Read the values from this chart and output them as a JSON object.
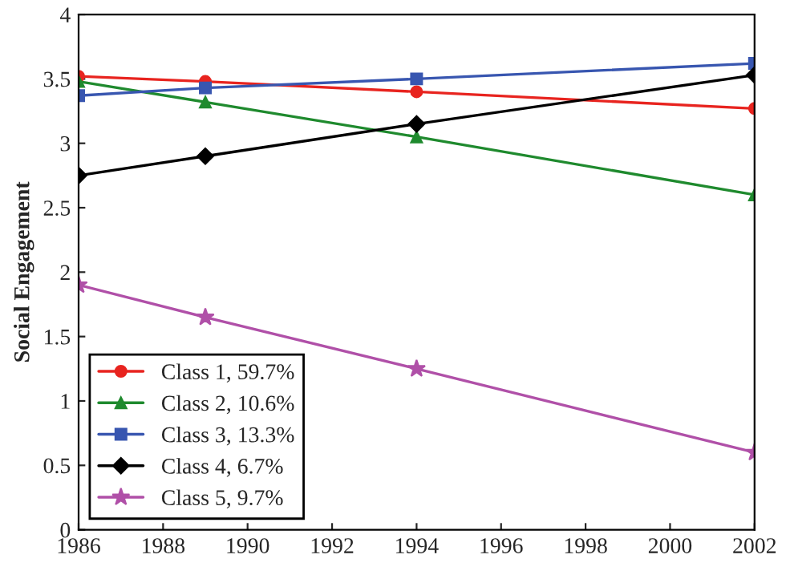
{
  "chart_data": {
    "type": "line",
    "ylabel": "Social Engagement",
    "x": [
      1986,
      1989,
      1994,
      2002
    ],
    "series": [
      {
        "name": "Class 1, 59.7%",
        "color": "#e8241f",
        "marker": "circle",
        "values": [
          3.52,
          3.48,
          3.4,
          3.27
        ]
      },
      {
        "name": "Class 2, 10.6%",
        "color": "#1f8a2e",
        "marker": "triangle",
        "values": [
          3.48,
          3.32,
          3.05,
          2.6
        ]
      },
      {
        "name": "Class 3, 13.3%",
        "color": "#3856b0",
        "marker": "square",
        "values": [
          3.37,
          3.43,
          3.5,
          3.62
        ]
      },
      {
        "name": "Class 4, 6.7%",
        "color": "#000000",
        "marker": "diamond",
        "values": [
          2.75,
          2.9,
          3.15,
          3.53
        ]
      },
      {
        "name": "Class 5, 9.7%",
        "color": "#b050a8",
        "marker": "star",
        "values": [
          1.9,
          1.65,
          1.25,
          0.6
        ]
      }
    ],
    "xlim": [
      1986,
      2002
    ],
    "xticks": [
      1986,
      1988,
      1990,
      1992,
      1994,
      1996,
      1998,
      2000,
      2002
    ],
    "ylim": [
      0,
      4
    ],
    "yticks": [
      0,
      0.5,
      1,
      1.5,
      2,
      2.5,
      3,
      3.5,
      4
    ],
    "grid": false,
    "legend": "bottom left"
  }
}
